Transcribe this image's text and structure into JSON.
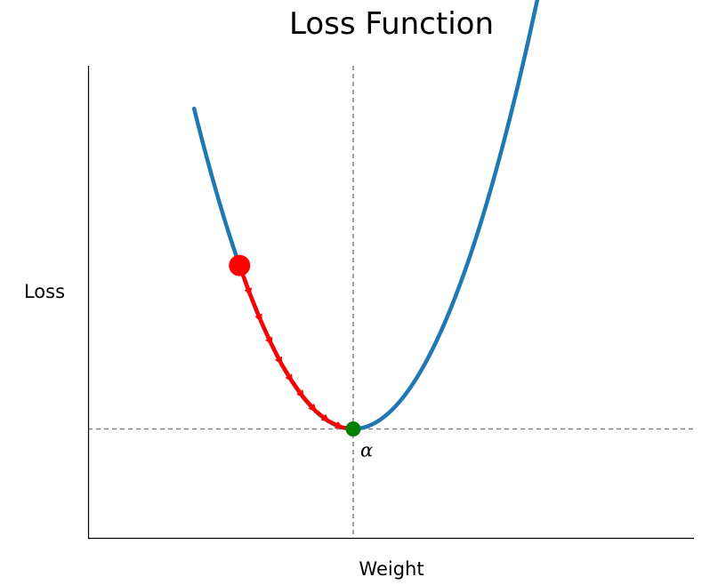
{
  "chart_data": {
    "type": "line",
    "title": "Loss Function",
    "xlabel": "Weight",
    "ylabel": "Loss",
    "xlim": [
      -3.5,
      4.5
    ],
    "ylim": [
      -1.5,
      5.0
    ],
    "grid": false,
    "ticks": "none",
    "series": [
      {
        "kind": "curve",
        "formula": "y = x^2",
        "x_range": [
          -2.1,
          2.55
        ],
        "color": "#1f77b4"
      },
      {
        "kind": "gradient-descent-steps",
        "color": "#ff0000",
        "x": [
          -1.5,
          -1.36,
          -1.22,
          -1.08,
          -0.95,
          -0.81,
          -0.66,
          -0.5,
          -0.33,
          -0.15,
          0.0
        ],
        "y": [
          2.25,
          1.85,
          1.49,
          1.17,
          0.9,
          0.66,
          0.44,
          0.25,
          0.11,
          0.02,
          0.0
        ]
      }
    ],
    "start_point": {
      "x": -1.5,
      "y": 2.25,
      "color": "#ff0000"
    },
    "minimum_point": {
      "x": 0.0,
      "y": 0.0,
      "color": "#008000",
      "label": "α"
    },
    "reference_lines": {
      "x": 0.0,
      "y": 0.0,
      "style": "dashed",
      "color": "#808080"
    }
  }
}
